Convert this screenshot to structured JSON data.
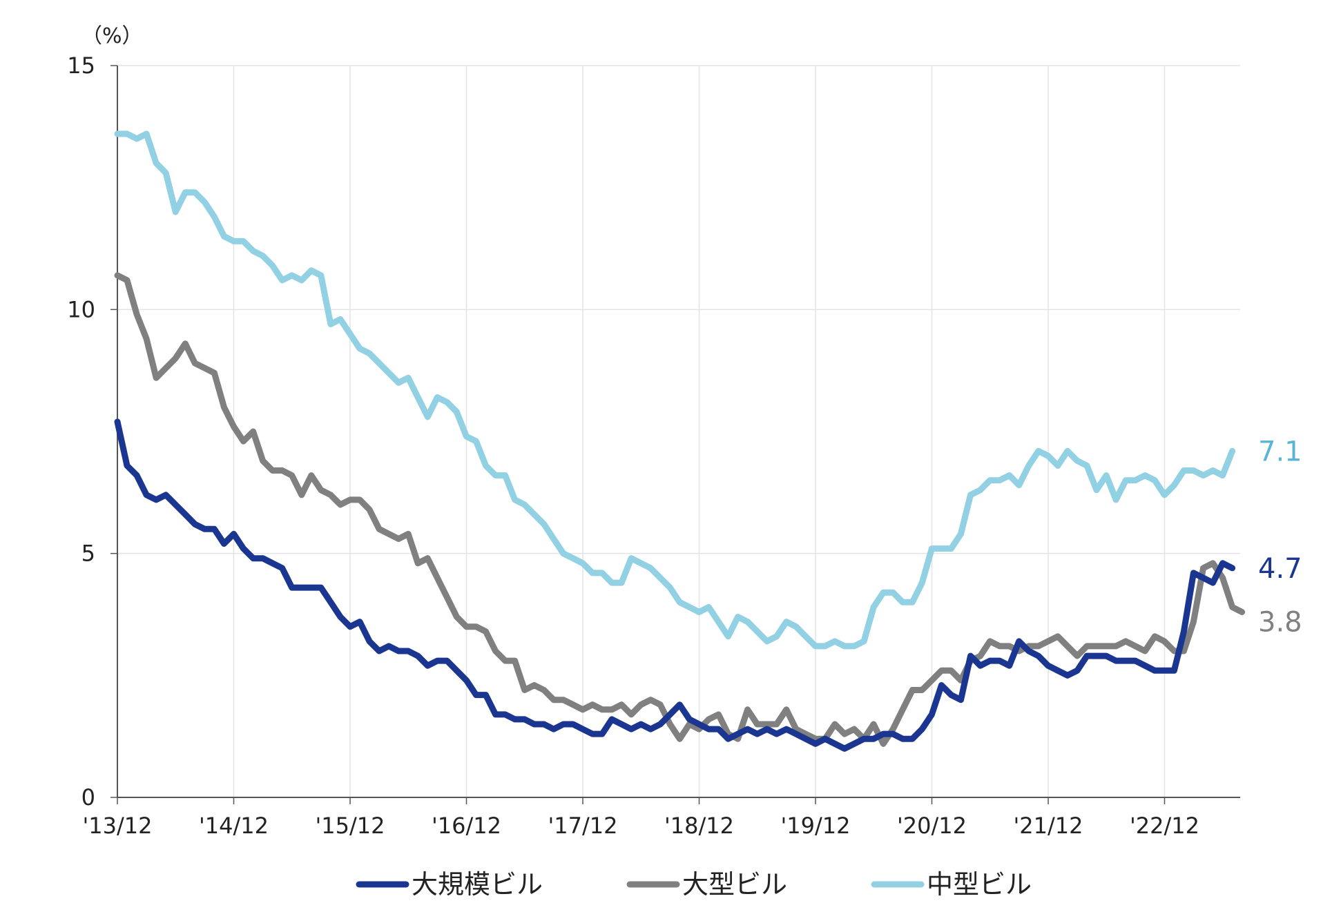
{
  "chart_data": {
    "type": "line",
    "unit_label": "（%）",
    "ylim": [
      0,
      15
    ],
    "yticks": [
      0,
      5,
      10,
      15
    ],
    "x_tick_labels": [
      "'13/12",
      "'14/12",
      "'15/12",
      "'16/12",
      "'17/12",
      "'18/12",
      "'19/12",
      "'20/12",
      "'21/12",
      "'22/12"
    ],
    "x_range_months": [
      "2013-12",
      "2023-08"
    ],
    "grid": true,
    "legend_position": "bottom",
    "series": [
      {
        "name": "大規模ビル",
        "color": "#1b3691",
        "end_label": "4.7",
        "values": [
          7.7,
          6.8,
          6.6,
          6.2,
          6.1,
          6.2,
          6.0,
          5.8,
          5.6,
          5.5,
          5.5,
          5.2,
          5.4,
          5.1,
          4.9,
          4.9,
          4.8,
          4.7,
          4.3,
          4.3,
          4.3,
          4.3,
          4.0,
          3.7,
          3.5,
          3.6,
          3.2,
          3.0,
          3.1,
          3.0,
          3.0,
          2.9,
          2.7,
          2.8,
          2.8,
          2.6,
          2.4,
          2.1,
          2.1,
          1.7,
          1.7,
          1.6,
          1.6,
          1.5,
          1.5,
          1.4,
          1.5,
          1.5,
          1.4,
          1.3,
          1.3,
          1.6,
          1.5,
          1.4,
          1.5,
          1.4,
          1.5,
          1.7,
          1.9,
          1.6,
          1.5,
          1.4,
          1.4,
          1.2,
          1.3,
          1.4,
          1.3,
          1.4,
          1.3,
          1.4,
          1.3,
          1.2,
          1.1,
          1.2,
          1.1,
          1.0,
          1.1,
          1.2,
          1.2,
          1.3,
          1.3,
          1.2,
          1.2,
          1.4,
          1.7,
          2.3,
          2.1,
          2.0,
          2.9,
          2.7,
          2.8,
          2.8,
          2.7,
          3.2,
          3.0,
          2.9,
          2.7,
          2.6,
          2.5,
          2.6,
          2.9,
          2.9,
          2.9,
          2.8,
          2.8,
          2.8,
          2.7,
          2.6,
          2.6,
          2.6,
          3.4,
          4.6,
          4.5,
          4.4,
          4.8,
          4.7
        ]
      },
      {
        "name": "大型ビル",
        "color": "#808080",
        "end_label": "3.8",
        "values": [
          10.7,
          10.6,
          9.9,
          9.4,
          8.6,
          8.8,
          9.0,
          9.3,
          8.9,
          8.8,
          8.7,
          8.0,
          7.6,
          7.3,
          7.5,
          6.9,
          6.7,
          6.7,
          6.6,
          6.2,
          6.6,
          6.3,
          6.2,
          6.0,
          6.1,
          6.1,
          5.9,
          5.5,
          5.4,
          5.3,
          5.4,
          4.8,
          4.9,
          4.5,
          4.1,
          3.7,
          3.5,
          3.5,
          3.4,
          3.0,
          2.8,
          2.8,
          2.2,
          2.3,
          2.2,
          2.0,
          2.0,
          1.9,
          1.8,
          1.9,
          1.8,
          1.8,
          1.9,
          1.7,
          1.9,
          2.0,
          1.9,
          1.5,
          1.2,
          1.5,
          1.4,
          1.6,
          1.7,
          1.3,
          1.2,
          1.8,
          1.5,
          1.5,
          1.5,
          1.8,
          1.4,
          1.3,
          1.2,
          1.2,
          1.5,
          1.3,
          1.4,
          1.2,
          1.5,
          1.1,
          1.4,
          1.8,
          2.2,
          2.2,
          2.4,
          2.6,
          2.6,
          2.4,
          2.8,
          2.9,
          3.2,
          3.1,
          3.1,
          3.0,
          3.1,
          3.1,
          3.2,
          3.3,
          3.1,
          2.9,
          3.1,
          3.1,
          3.1,
          3.1,
          3.2,
          3.1,
          3.0,
          3.3,
          3.2,
          3.0,
          3.0,
          3.6,
          4.7,
          4.8,
          4.5,
          3.9,
          3.8
        ]
      },
      {
        "name": "中型ビル",
        "color": "#92d0e4",
        "end_label": "7.1",
        "values": [
          13.6,
          13.6,
          13.5,
          13.6,
          13.0,
          12.8,
          12.0,
          12.4,
          12.4,
          12.2,
          11.9,
          11.5,
          11.4,
          11.4,
          11.2,
          11.1,
          10.9,
          10.6,
          10.7,
          10.6,
          10.8,
          10.7,
          9.7,
          9.8,
          9.5,
          9.2,
          9.1,
          8.9,
          8.7,
          8.5,
          8.6,
          8.2,
          7.8,
          8.2,
          8.1,
          7.9,
          7.4,
          7.3,
          6.8,
          6.6,
          6.6,
          6.1,
          6.0,
          5.8,
          5.6,
          5.3,
          5.0,
          4.9,
          4.8,
          4.6,
          4.6,
          4.4,
          4.4,
          4.9,
          4.8,
          4.7,
          4.5,
          4.3,
          4.0,
          3.9,
          3.8,
          3.9,
          3.6,
          3.3,
          3.7,
          3.6,
          3.4,
          3.2,
          3.3,
          3.6,
          3.5,
          3.3,
          3.1,
          3.1,
          3.2,
          3.1,
          3.1,
          3.2,
          3.9,
          4.2,
          4.2,
          4.0,
          4.0,
          4.4,
          5.1,
          5.1,
          5.1,
          5.4,
          6.2,
          6.3,
          6.5,
          6.5,
          6.6,
          6.4,
          6.8,
          7.1,
          7.0,
          6.8,
          7.1,
          6.9,
          6.8,
          6.3,
          6.6,
          6.1,
          6.5,
          6.5,
          6.6,
          6.5,
          6.2,
          6.4,
          6.7,
          6.7,
          6.6,
          6.7,
          6.6,
          7.1
        ]
      }
    ]
  }
}
